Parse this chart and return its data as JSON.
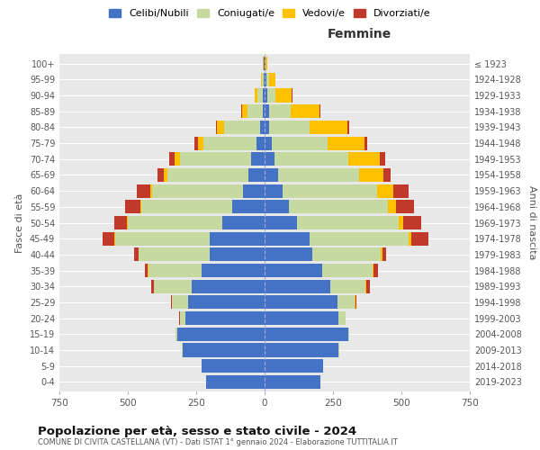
{
  "age_groups": [
    "0-4",
    "5-9",
    "10-14",
    "15-19",
    "20-24",
    "25-29",
    "30-34",
    "35-39",
    "40-44",
    "45-49",
    "50-54",
    "55-59",
    "60-64",
    "65-69",
    "70-74",
    "75-79",
    "80-84",
    "85-89",
    "90-94",
    "95-99",
    "100+"
  ],
  "birth_years": [
    "2019-2023",
    "2014-2018",
    "2009-2013",
    "2004-2008",
    "1999-2003",
    "1994-1998",
    "1989-1993",
    "1984-1988",
    "1979-1983",
    "1974-1978",
    "1969-1973",
    "1964-1968",
    "1959-1963",
    "1954-1958",
    "1949-1953",
    "1944-1948",
    "1939-1943",
    "1934-1938",
    "1929-1933",
    "1924-1928",
    "≤ 1923"
  ],
  "males": {
    "celibi": [
      215,
      230,
      300,
      320,
      290,
      280,
      265,
      230,
      200,
      200,
      155,
      120,
      80,
      60,
      50,
      30,
      18,
      8,
      5,
      3,
      2
    ],
    "coniugati": [
      0,
      0,
      2,
      5,
      20,
      60,
      140,
      195,
      260,
      345,
      345,
      330,
      330,
      295,
      260,
      195,
      130,
      55,
      20,
      8,
      2
    ],
    "vedovi": [
      0,
      0,
      0,
      0,
      0,
      0,
      0,
      1,
      2,
      3,
      4,
      5,
      8,
      12,
      18,
      20,
      25,
      20,
      10,
      3,
      1
    ],
    "divorziati": [
      0,
      0,
      0,
      0,
      2,
      3,
      8,
      12,
      15,
      45,
      45,
      55,
      50,
      25,
      20,
      10,
      5,
      2,
      1,
      0,
      0
    ]
  },
  "females": {
    "nubili": [
      205,
      215,
      270,
      305,
      270,
      265,
      240,
      210,
      175,
      165,
      120,
      90,
      65,
      50,
      35,
      25,
      18,
      15,
      10,
      5,
      2
    ],
    "coniugate": [
      0,
      0,
      2,
      5,
      25,
      65,
      130,
      185,
      250,
      360,
      370,
      360,
      345,
      295,
      270,
      205,
      145,
      80,
      30,
      10,
      2
    ],
    "vedove": [
      0,
      0,
      0,
      0,
      0,
      1,
      2,
      3,
      5,
      10,
      18,
      30,
      60,
      90,
      115,
      135,
      140,
      105,
      60,
      25,
      5
    ],
    "divorziate": [
      0,
      0,
      0,
      0,
      2,
      5,
      12,
      18,
      15,
      65,
      65,
      65,
      55,
      25,
      20,
      10,
      5,
      3,
      2,
      1,
      0
    ]
  },
  "colors": {
    "celibi": "#4472c4",
    "coniugati": "#c5d9a0",
    "vedovi": "#ffc000",
    "divorziati": "#c0392b"
  },
  "xlim": 750,
  "title": "Popolazione per età, sesso e stato civile - 2024",
  "subtitle": "COMUNE DI CIVITA CASTELLANA (VT) - Dati ISTAT 1° gennaio 2024 - Elaborazione TUTTITALIA.IT",
  "ylabel_left": "Fasce di età",
  "ylabel_right": "Anni di nascita",
  "xlabel_right": "Femmine",
  "legend_labels": [
    "Celibi/Nubili",
    "Coniugati/e",
    "Vedovi/e",
    "Divorziati/e"
  ],
  "bg_color": "#e8e8e8",
  "fig_color": "#ffffff"
}
